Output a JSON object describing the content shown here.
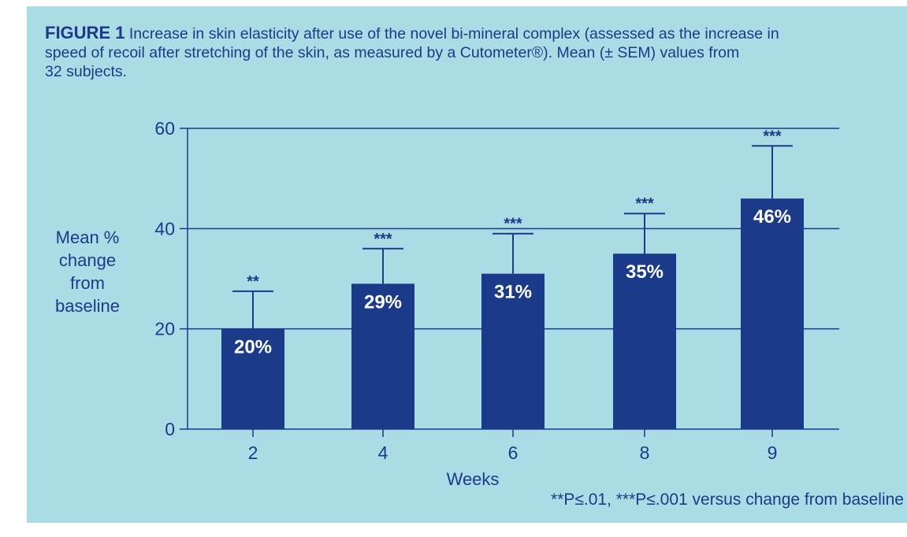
{
  "caption": {
    "label": "FIGURE 1",
    "text": "Increase in skin elasticity after use of the novel bi-mineral complex (assessed as the increase in\nspeed of recoil after stretching of the skin, as measured by a Cutometer®). Mean (± SEM) values from\n32 subjects."
  },
  "colors": {
    "background": "#a9dce5",
    "bar": "#1b3a8a",
    "text": "#1c3a87"
  },
  "chart_data": {
    "type": "bar",
    "categories": [
      "2",
      "4",
      "6",
      "8",
      "9"
    ],
    "values": [
      20,
      29,
      31,
      35,
      46
    ],
    "error_upper": [
      27.5,
      36,
      39,
      43,
      56.5
    ],
    "data_labels": [
      "20%",
      "29%",
      "31%",
      "35%",
      "46%"
    ],
    "significance": [
      "**",
      "***",
      "***",
      "***",
      "***"
    ],
    "xlabel": "Weeks",
    "ylabel": [
      "Mean %",
      "change",
      "from",
      "baseline"
    ],
    "ylim": [
      0,
      60
    ],
    "yticks": [
      0,
      20,
      40,
      60
    ],
    "grid": true,
    "footnote": "**P≤.01, ***P≤.001 versus change from baseline"
  }
}
